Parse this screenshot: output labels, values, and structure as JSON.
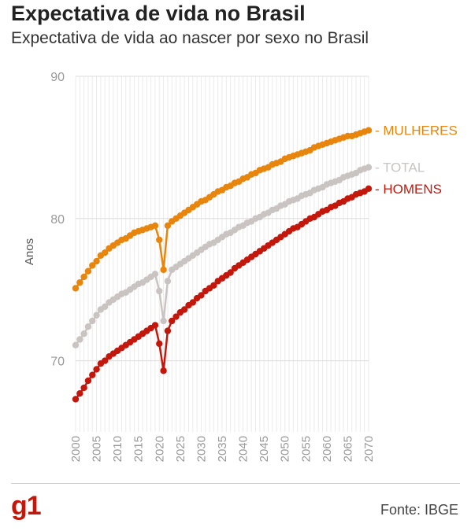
{
  "header": {
    "title": "Expectativa de vida no Brasil",
    "subtitle": "Expectativa de vida ao nascer por sexo no Brasil"
  },
  "footer": {
    "logo_text": "g1",
    "source": "Fonte: IBGE"
  },
  "chart_data": {
    "type": "line",
    "title": "Expectativa de vida no Brasil",
    "subtitle": "Expectativa de vida ao nascer por sexo no Brasil",
    "xlabel": "",
    "ylabel": "Anos",
    "xlim": [
      2000,
      2070
    ],
    "ylim": [
      65,
      90
    ],
    "yticks": [
      70,
      80,
      90
    ],
    "xticks": [
      2000,
      2005,
      2010,
      2015,
      2020,
      2025,
      2030,
      2035,
      2040,
      2045,
      2050,
      2055,
      2060,
      2065,
      2070
    ],
    "grid": "vertical lines every year, horizontal lines at y ticks",
    "legend": "direct labels at right end of lines",
    "x": [
      2000,
      2001,
      2002,
      2003,
      2004,
      2005,
      2006,
      2007,
      2008,
      2009,
      2010,
      2011,
      2012,
      2013,
      2014,
      2015,
      2016,
      2017,
      2018,
      2019,
      2020,
      2021,
      2022,
      2023,
      2024,
      2025,
      2026,
      2027,
      2028,
      2029,
      2030,
      2031,
      2032,
      2033,
      2034,
      2035,
      2036,
      2037,
      2038,
      2039,
      2040,
      2041,
      2042,
      2043,
      2044,
      2045,
      2046,
      2047,
      2048,
      2049,
      2050,
      2051,
      2052,
      2053,
      2054,
      2055,
      2056,
      2057,
      2058,
      2059,
      2060,
      2061,
      2062,
      2063,
      2064,
      2065,
      2066,
      2067,
      2068,
      2069,
      2070
    ],
    "series": [
      {
        "name": "MULHERES",
        "color": "#e8850c",
        "values": [
          75.1,
          75.5,
          75.9,
          76.3,
          76.7,
          77.0,
          77.4,
          77.6,
          77.9,
          78.1,
          78.3,
          78.5,
          78.6,
          78.8,
          79.0,
          79.1,
          79.2,
          79.3,
          79.4,
          79.5,
          78.5,
          76.4,
          79.5,
          79.8,
          80.0,
          80.2,
          80.4,
          80.6,
          80.8,
          81.0,
          81.2,
          81.3,
          81.5,
          81.7,
          81.9,
          82.0,
          82.2,
          82.3,
          82.5,
          82.6,
          82.8,
          82.9,
          83.1,
          83.2,
          83.4,
          83.5,
          83.6,
          83.8,
          83.9,
          84.0,
          84.2,
          84.3,
          84.4,
          84.5,
          84.6,
          84.7,
          84.8,
          85.0,
          85.1,
          85.2,
          85.3,
          85.4,
          85.5,
          85.6,
          85.7,
          85.8,
          85.8,
          85.9,
          86.0,
          86.1,
          86.2
        ]
      },
      {
        "name": "TOTAL",
        "color": "#c9c4c2",
        "values": [
          71.1,
          71.5,
          71.9,
          72.4,
          72.8,
          73.2,
          73.6,
          73.8,
          74.1,
          74.3,
          74.5,
          74.7,
          74.8,
          75.0,
          75.2,
          75.4,
          75.5,
          75.7,
          75.9,
          76.1,
          74.9,
          72.8,
          75.6,
          76.4,
          76.6,
          76.8,
          77.0,
          77.2,
          77.4,
          77.6,
          77.8,
          78.0,
          78.2,
          78.3,
          78.5,
          78.7,
          78.9,
          79.0,
          79.2,
          79.4,
          79.5,
          79.7,
          79.8,
          80.0,
          80.1,
          80.3,
          80.4,
          80.6,
          80.7,
          80.9,
          81.0,
          81.2,
          81.3,
          81.4,
          81.6,
          81.7,
          81.8,
          82.0,
          82.1,
          82.2,
          82.4,
          82.5,
          82.6,
          82.7,
          82.9,
          83.0,
          83.1,
          83.2,
          83.4,
          83.5,
          83.6
        ]
      },
      {
        "name": "HOMENS",
        "color": "#c4170c",
        "values": [
          67.3,
          67.7,
          68.1,
          68.6,
          69.0,
          69.4,
          69.8,
          70.0,
          70.3,
          70.5,
          70.7,
          70.9,
          71.1,
          71.3,
          71.5,
          71.7,
          71.9,
          72.1,
          72.3,
          72.5,
          71.2,
          69.3,
          72.1,
          72.8,
          73.1,
          73.4,
          73.6,
          73.9,
          74.1,
          74.4,
          74.6,
          74.9,
          75.1,
          75.3,
          75.6,
          75.8,
          76.0,
          76.2,
          76.5,
          76.7,
          76.9,
          77.1,
          77.3,
          77.5,
          77.7,
          77.9,
          78.1,
          78.3,
          78.5,
          78.7,
          78.9,
          79.1,
          79.3,
          79.4,
          79.6,
          79.8,
          80.0,
          80.1,
          80.3,
          80.5,
          80.6,
          80.8,
          80.9,
          81.1,
          81.2,
          81.4,
          81.5,
          81.7,
          81.8,
          81.9,
          82.1
        ]
      }
    ]
  }
}
